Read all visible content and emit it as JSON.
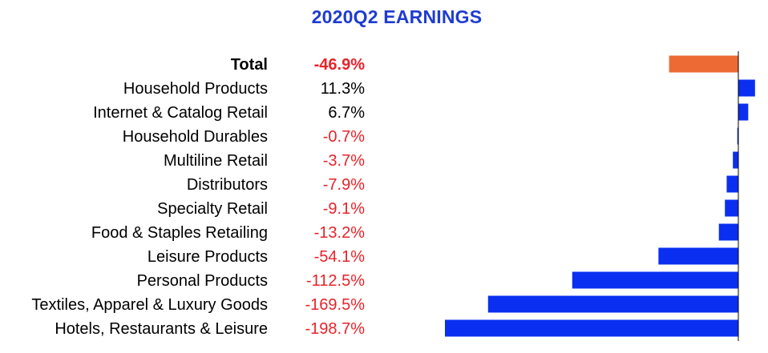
{
  "chart_data": {
    "type": "bar",
    "title": "2020Q2 EARNINGS",
    "xlabel": "",
    "ylabel": "",
    "value_suffix": "%",
    "categories": [
      "Total",
      "Household Products",
      "Internet & Catalog Retail",
      "Household Durables",
      "Multiline Retail",
      "Distributors",
      "Specialty Retail",
      "Food & Staples Retailing",
      "Leisure Products",
      "Personal Products",
      "Textiles, Apparel & Luxury Goods",
      "Hotels, Restaurants & Leisure"
    ],
    "value_labels": [
      "-46.9%",
      "11.3%",
      "6.7%",
      "-0.7%",
      "-3.7%",
      "-7.9%",
      "-9.1%",
      "-13.2%",
      "-54.1%",
      "-112.5%",
      "-169.5%",
      "-198.7%"
    ],
    "values": [
      -46.9,
      11.3,
      6.7,
      -0.7,
      -3.7,
      -7.9,
      -9.1,
      -13.2,
      -54.1,
      -112.5,
      -169.5,
      -198.7
    ],
    "xlim": [
      -198.7,
      11.3
    ],
    "highlight_index": 0,
    "colors": {
      "total_bar": "#ed6a35",
      "bar": "#0b2ff0",
      "negative_text": "#e8232a",
      "positive_text": "#000000",
      "title": "#1f3ccf",
      "axis_line": "#000000"
    }
  }
}
